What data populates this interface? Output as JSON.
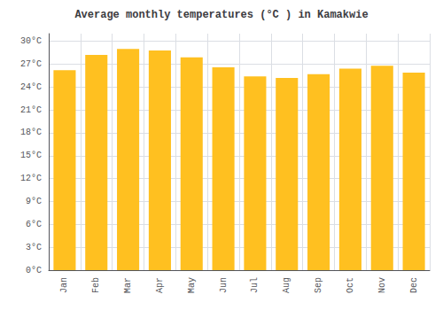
{
  "chart_data": {
    "type": "bar",
    "title": "Average monthly temperatures (°C ) in Kamakwie",
    "categories": [
      "Jan",
      "Feb",
      "Mar",
      "Apr",
      "May",
      "Jun",
      "Jul",
      "Aug",
      "Sep",
      "Oct",
      "Nov",
      "Dec"
    ],
    "values": [
      26.2,
      28.2,
      29.0,
      28.8,
      27.9,
      26.6,
      25.4,
      25.2,
      25.7,
      26.4,
      26.8,
      25.9
    ],
    "color": "#FFC020",
    "ylim": [
      0,
      31
    ],
    "yticks": [
      {
        "value": 0,
        "label": "0°C"
      },
      {
        "value": 3,
        "label": "3°C"
      },
      {
        "value": 6,
        "label": "6°C"
      },
      {
        "value": 9,
        "label": "9°C"
      },
      {
        "value": 12,
        "label": "12°C"
      },
      {
        "value": 15,
        "label": "15°C"
      },
      {
        "value": 18,
        "label": "18°C"
      },
      {
        "value": 21,
        "label": "21°C"
      },
      {
        "value": 24,
        "label": "24°C"
      },
      {
        "value": 27,
        "label": "27°C"
      },
      {
        "value": 30,
        "label": "30°C"
      }
    ],
    "grid": true
  }
}
